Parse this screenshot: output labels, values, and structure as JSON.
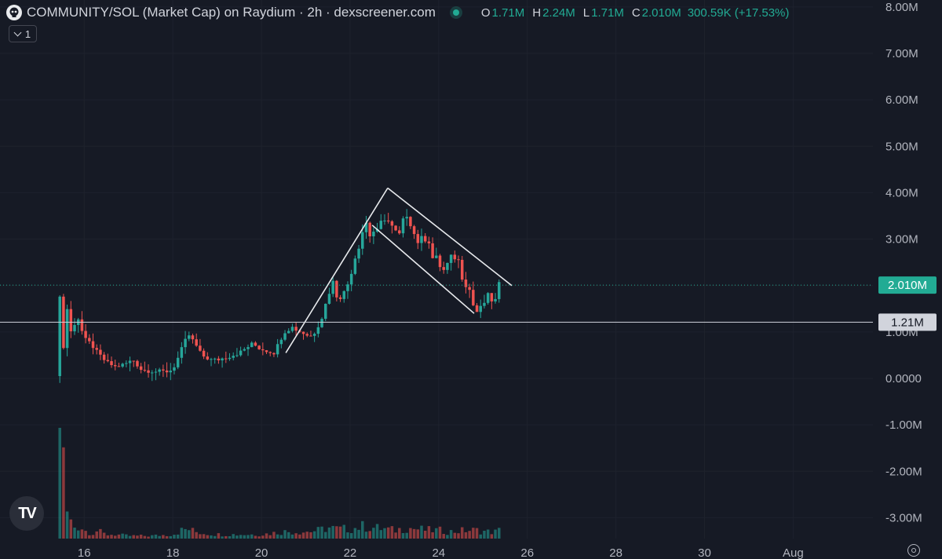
{
  "header": {
    "title": "COMMUNITY/SOL (Market Cap) on Raydium · 2h · dexscreener.com",
    "ohlc": {
      "o_label": "O",
      "o_value": "1.71M",
      "h_label": "H",
      "h_value": "2.24M",
      "l_label": "L",
      "l_value": "1.71M",
      "c_label": "C",
      "c_value": "2.010M",
      "change": "300.59K (+17.53%)"
    },
    "status_icon": "live-dot-icon",
    "logo_icon": "skull-logo-icon"
  },
  "collapse_button": {
    "label": "1",
    "icon": "chevron-down-icon"
  },
  "tv_logo": {
    "label": "TV"
  },
  "settings_icon": "gear-icon",
  "colors": {
    "background": "#161a25",
    "up": "#26a69a",
    "down": "#ef5350",
    "grid": "#1e222d",
    "axis_text": "#b2b5be",
    "price_label": "#22ab94",
    "hline_label": "#b2b5be"
  },
  "chart_data": {
    "type": "candlestick",
    "title": "COMMUNITY/SOL (Market Cap) on Raydium · 2h · dexscreener.com",
    "y_ticks": [
      "8.00M",
      "7.00M",
      "6.00M",
      "5.00M",
      "4.00M",
      "3.00M",
      "2.00M",
      "1.00M",
      "0.0000",
      "-1.00M",
      "-2.00M",
      "-3.00M"
    ],
    "y_tick_values": [
      8,
      7,
      6,
      5,
      4,
      3,
      2,
      1,
      0,
      -1,
      -2,
      -3
    ],
    "ylim": [
      -3.45,
      8.15
    ],
    "y_unit": "M",
    "x_ticks": [
      "16",
      "18",
      "20",
      "22",
      "24",
      "26",
      "28",
      "30",
      "Aug"
    ],
    "x_tick_days": [
      16,
      18,
      20,
      22,
      24,
      26,
      28,
      30,
      32
    ],
    "xlim_days": [
      14.1,
      33.8
    ],
    "interval_days": 0.0833,
    "first_candle_day": 15.45,
    "grid": true,
    "current_price": {
      "label": "2.010M",
      "value": 2.01
    },
    "horizontal_line": {
      "label": "1.21M",
      "value": 1.21
    },
    "close_trace": [
      [
        15.45,
        1.75
      ],
      [
        15.5,
        0.2
      ],
      [
        15.6,
        1.6
      ],
      [
        15.7,
        1.0
      ],
      [
        15.85,
        1.35
      ],
      [
        16.0,
        0.85
      ],
      [
        16.15,
        0.75
      ],
      [
        16.3,
        0.55
      ],
      [
        16.5,
        0.35
      ],
      [
        16.7,
        0.25
      ],
      [
        16.9,
        0.3
      ],
      [
        17.1,
        0.4
      ],
      [
        17.3,
        0.18
      ],
      [
        17.6,
        0.15
      ],
      [
        17.9,
        0.15
      ],
      [
        18.0,
        0.2
      ],
      [
        18.1,
        0.4
      ],
      [
        18.25,
        0.75
      ],
      [
        18.35,
        0.95
      ],
      [
        18.5,
        0.75
      ],
      [
        18.65,
        0.5
      ],
      [
        18.85,
        0.4
      ],
      [
        19.0,
        0.4
      ],
      [
        19.2,
        0.45
      ],
      [
        19.35,
        0.5
      ],
      [
        19.5,
        0.55
      ],
      [
        19.65,
        0.65
      ],
      [
        19.8,
        0.75
      ],
      [
        19.95,
        0.65
      ],
      [
        20.1,
        0.6
      ],
      [
        20.3,
        0.55
      ],
      [
        20.4,
        0.8
      ],
      [
        20.55,
        1.05
      ],
      [
        20.7,
        1.1
      ],
      [
        20.9,
        1.0
      ],
      [
        21.0,
        0.95
      ],
      [
        21.1,
        0.9
      ],
      [
        21.2,
        1.0
      ],
      [
        21.3,
        1.2
      ],
      [
        21.4,
        1.4
      ],
      [
        21.5,
        1.8
      ],
      [
        21.6,
        2.1
      ],
      [
        21.7,
        1.8
      ],
      [
        21.8,
        1.8
      ],
      [
        21.9,
        1.85
      ],
      [
        22.0,
        2.25
      ],
      [
        22.1,
        2.6
      ],
      [
        22.25,
        3.1
      ],
      [
        22.35,
        3.4
      ],
      [
        22.45,
        3.1
      ],
      [
        22.55,
        3.2
      ],
      [
        22.65,
        3.0
      ],
      [
        22.75,
        3.6
      ],
      [
        22.85,
        3.4
      ],
      [
        22.95,
        3.2
      ],
      [
        23.1,
        3.0
      ],
      [
        23.2,
        3.3
      ],
      [
        23.3,
        3.7
      ],
      [
        23.45,
        3.1
      ],
      [
        23.6,
        2.9
      ],
      [
        23.75,
        3.2
      ],
      [
        23.85,
        2.6
      ],
      [
        24.0,
        2.5
      ],
      [
        24.1,
        2.3
      ],
      [
        24.25,
        2.5
      ],
      [
        24.4,
        2.7
      ],
      [
        24.5,
        2.3
      ],
      [
        24.6,
        2.1
      ],
      [
        24.7,
        1.9
      ],
      [
        24.8,
        1.5
      ],
      [
        24.9,
        1.4
      ],
      [
        25.0,
        1.6
      ],
      [
        25.1,
        1.75
      ],
      [
        25.2,
        1.7
      ],
      [
        25.3,
        1.65
      ],
      [
        25.37,
        2.01
      ]
    ],
    "volume_ylim": [
      0,
      1.0
    ],
    "volume": [
      [
        15.45,
        0.98
      ],
      [
        15.5,
        0.68
      ],
      [
        15.55,
        0.45
      ],
      [
        15.6,
        0.2
      ],
      [
        15.7,
        0.12
      ],
      [
        15.8,
        0.08
      ],
      [
        15.9,
        0.1
      ],
      [
        16.0,
        0.06
      ],
      [
        16.1,
        0.05
      ],
      [
        16.2,
        0.04
      ],
      [
        16.3,
        0.06
      ],
      [
        16.4,
        0.04
      ],
      [
        16.5,
        0.03
      ],
      [
        16.7,
        0.03
      ],
      [
        17.0,
        0.02
      ],
      [
        17.5,
        0.02
      ],
      [
        18.0,
        0.03
      ],
      [
        18.2,
        0.06
      ],
      [
        18.35,
        0.07
      ],
      [
        18.5,
        0.05
      ],
      [
        18.7,
        0.04
      ],
      [
        19.0,
        0.03
      ],
      [
        19.5,
        0.03
      ],
      [
        20.0,
        0.03
      ],
      [
        20.5,
        0.05
      ],
      [
        21.0,
        0.05
      ],
      [
        21.3,
        0.06
      ],
      [
        21.5,
        0.08
      ],
      [
        21.7,
        0.07
      ],
      [
        22.0,
        0.07
      ],
      [
        22.3,
        0.09
      ],
      [
        22.5,
        0.08
      ],
      [
        22.8,
        0.07
      ],
      [
        23.0,
        0.06
      ],
      [
        23.3,
        0.08
      ],
      [
        23.5,
        0.07
      ],
      [
        23.8,
        0.06
      ],
      [
        24.0,
        0.06
      ],
      [
        24.3,
        0.05
      ],
      [
        24.6,
        0.06
      ],
      [
        24.9,
        0.06
      ],
      [
        25.1,
        0.05
      ],
      [
        25.3,
        0.05
      ],
      [
        25.37,
        0.06
      ]
    ],
    "trendlines": [
      {
        "name": "rising",
        "points": [
          [
            20.55,
            0.55
          ],
          [
            22.85,
            4.1
          ]
        ]
      },
      {
        "name": "channel-upper",
        "points": [
          [
            22.85,
            4.1
          ],
          [
            25.65,
            2.0
          ]
        ]
      },
      {
        "name": "channel-lower",
        "points": [
          [
            22.5,
            3.3
          ],
          [
            24.8,
            1.4
          ]
        ]
      }
    ]
  }
}
